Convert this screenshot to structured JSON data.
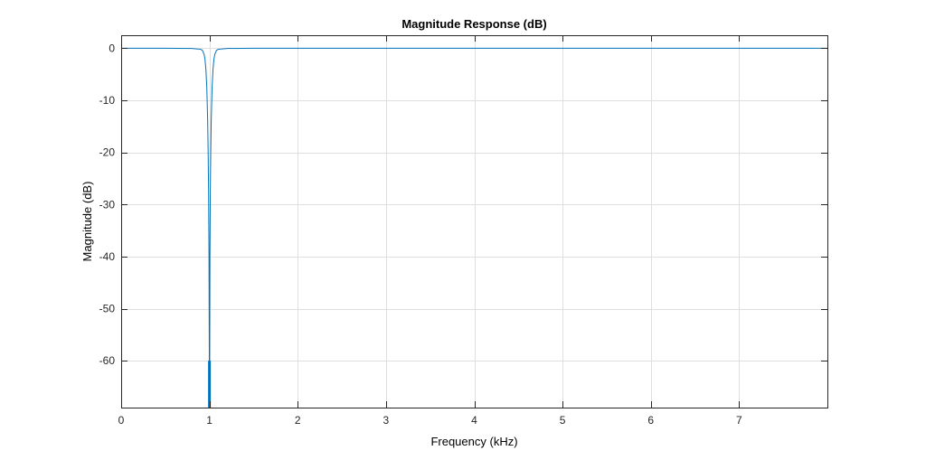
{
  "chart_data": {
    "type": "line",
    "title": "Magnitude Response (dB)",
    "xlabel": "Frequency (kHz)",
    "ylabel": "Magnitude (dB)",
    "xlim": [
      0,
      8
    ],
    "ylim": [
      -69,
      2.5
    ],
    "xticks": [
      0,
      1,
      2,
      3,
      4,
      5,
      6,
      7
    ],
    "yticks": [
      0,
      -10,
      -20,
      -30,
      -40,
      -50,
      -60
    ],
    "grid": true,
    "series": [
      {
        "color": "#0072BD",
        "notch": {
          "center_khz": 1.0,
          "bandwidth_khz": 0.03,
          "floor_db": -69
        },
        "x": [
          0,
          0.5,
          0.8,
          0.9,
          0.92,
          0.94,
          0.95,
          0.96,
          0.97,
          0.98,
          0.985,
          0.99,
          0.995,
          1.0,
          1.005,
          1.01,
          1.015,
          1.02,
          1.03,
          1.04,
          1.05,
          1.06,
          1.08,
          1.1,
          1.2,
          1.5,
          2,
          3,
          4,
          5,
          6,
          7,
          8
        ],
        "y": [
          0,
          0,
          -0.03,
          -0.2,
          -0.4,
          -1.2,
          -2.2,
          -4.1,
          -7.5,
          -14,
          -19.5,
          -27,
          -40,
          -69,
          -40,
          -27,
          -19.5,
          -14,
          -7.5,
          -4.1,
          -2.2,
          -1.2,
          -0.4,
          -0.2,
          -0.03,
          0,
          0,
          0,
          0,
          0,
          0,
          0,
          0
        ]
      }
    ]
  }
}
